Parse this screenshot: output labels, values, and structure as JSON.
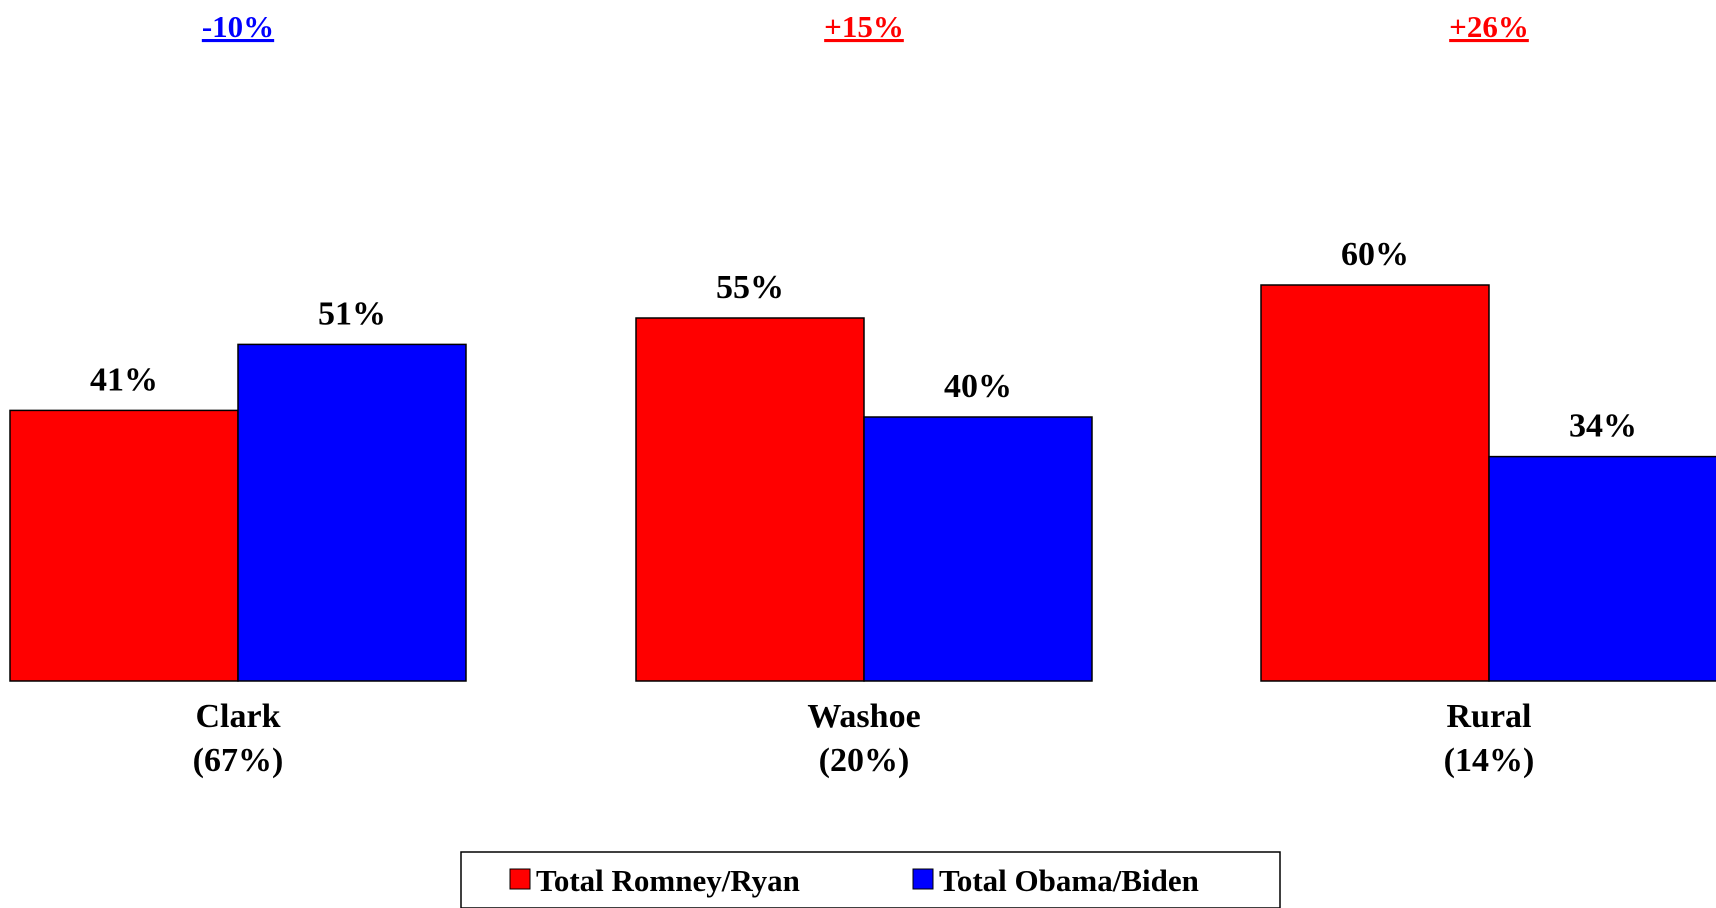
{
  "chart_data": {
    "type": "bar",
    "categories": [
      "Clark",
      "Washoe",
      "Rural"
    ],
    "category_shares": [
      "(67%)",
      "(20%)",
      "(14%)"
    ],
    "series": [
      {
        "name": "Total Romney/Ryan",
        "values": [
          41,
          55,
          60
        ],
        "labels": [
          "41%",
          "55%",
          "60%"
        ],
        "color": "#ff0000"
      },
      {
        "name": "Total Obama/Biden",
        "values": [
          51,
          40,
          34
        ],
        "labels": [
          "51%",
          "40%",
          "34%"
        ],
        "color": "#0000ff"
      }
    ],
    "margins": [
      {
        "label": "-10%",
        "color": "#0000ff"
      },
      {
        "label": "+15%",
        "color": "#ff0000"
      },
      {
        "label": "+26%",
        "color": "#ff0000"
      }
    ],
    "ylim": [
      0,
      100
    ],
    "grid": false,
    "legend_placement": "bottom-center",
    "title": "",
    "xlabel": "",
    "ylabel": ""
  }
}
